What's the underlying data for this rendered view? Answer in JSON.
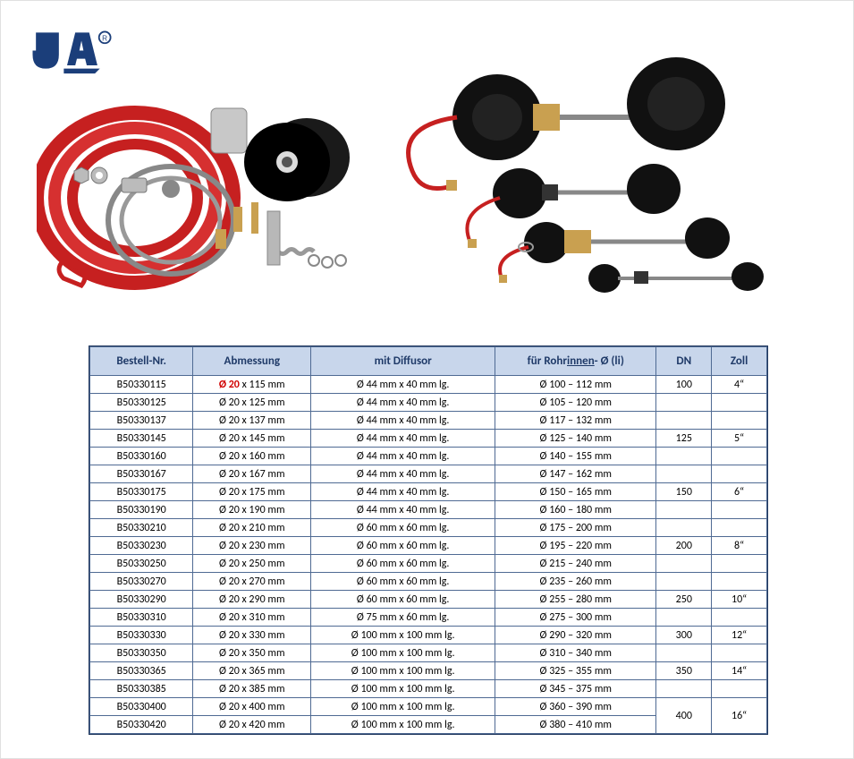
{
  "logo_color": "#1b3e7a",
  "headers": {
    "bnr": "Bestell-Nr.",
    "abm": "Abmessung",
    "dif": "mit Diffusor",
    "rohr_pre": "für Rohr",
    "rohr_underline": "innen",
    "rohr_post": "- Ø (li)",
    "dn": "DN",
    "zoll": "Zoll"
  },
  "rows": [
    {
      "bnr": "B50330115",
      "abm_red": "Ø 20",
      "abm_rest": " x 115 mm",
      "dif": "Ø  44 mm x   40 mm lg.",
      "rohr": "Ø 100 – 112 mm",
      "dn": "100",
      "zoll": "4“"
    },
    {
      "bnr": "B50330125",
      "abm": "Ø 20 x 125 mm",
      "dif": "Ø  44 mm x   40 mm lg.",
      "rohr": "Ø 105 – 120 mm",
      "dn": "",
      "zoll": ""
    },
    {
      "bnr": "B50330137",
      "abm": "Ø 20 x 137 mm",
      "dif": "Ø  44 mm x   40 mm lg.",
      "rohr": "Ø 117 – 132 mm",
      "dn": "",
      "zoll": ""
    },
    {
      "bnr": "B50330145",
      "abm": "Ø 20 x 145 mm",
      "dif": "Ø  44 mm x   40 mm lg.",
      "rohr": "Ø 125 – 140 mm",
      "dn": "125",
      "zoll": "5“"
    },
    {
      "bnr": "B50330160",
      "abm": "Ø 20 x 160 mm",
      "dif": "Ø  44 mm x   40 mm lg.",
      "rohr": "Ø 140 – 155 mm",
      "dn": "",
      "zoll": ""
    },
    {
      "bnr": "B50330167",
      "abm": "Ø 20 x 167 mm",
      "dif": "Ø  44 mm x   40 mm lg.",
      "rohr": "Ø 147 – 162 mm",
      "dn": "",
      "zoll": ""
    },
    {
      "bnr": "B50330175",
      "abm": "Ø 20 x 175 mm",
      "dif": "Ø  44 mm x   40 mm lg.",
      "rohr": "Ø 150 – 165 mm",
      "dn": "150",
      "zoll": "6“"
    },
    {
      "bnr": "B50330190",
      "abm": "Ø 20 x 190 mm",
      "dif": "Ø  44 mm x   40 mm lg.",
      "rohr": "Ø 160 – 180 mm",
      "dn": "",
      "zoll": ""
    },
    {
      "bnr": "B50330210",
      "abm": "Ø 20 x 210 mm",
      "dif": "Ø  60 mm x   60 mm lg.",
      "rohr": "Ø 175 – 200 mm",
      "dn": "",
      "zoll": ""
    },
    {
      "bnr": "B50330230",
      "abm": "Ø 20 x 230 mm",
      "dif": "Ø  60 mm x   60 mm lg.",
      "rohr": "Ø 195 – 220 mm",
      "dn": "200",
      "zoll": "8“"
    },
    {
      "bnr": "B50330250",
      "abm": "Ø 20 x 250 mm",
      "dif": "Ø  60 mm x   60 mm lg.",
      "rohr": "Ø 215 – 240 mm",
      "dn": "",
      "zoll": ""
    },
    {
      "bnr": "B50330270",
      "abm": "Ø 20 x 270 mm",
      "dif": "Ø  60 mm x   60 mm lg.",
      "rohr": "Ø 235 – 260 mm",
      "dn": "",
      "zoll": ""
    },
    {
      "bnr": "B50330290",
      "abm": "Ø 20 x 290 mm",
      "dif": "Ø  60 mm x   60 mm lg.",
      "rohr": "Ø 255 – 280 mm",
      "dn": "250",
      "zoll": "10“"
    },
    {
      "bnr": "B50330310",
      "abm": "Ø 20 x 310 mm",
      "dif": "Ø  75 mm x   60 mm lg.",
      "rohr": "Ø 275 – 300 mm",
      "dn": "",
      "zoll": ""
    },
    {
      "bnr": "B50330330",
      "abm": "Ø 20 x 330 mm",
      "dif": "Ø 100 mm x 100 mm lg.",
      "rohr": "Ø 290 – 320 mm",
      "dn": "300",
      "zoll": "12“"
    },
    {
      "bnr": "B50330350",
      "abm": "Ø 20 x 350 mm",
      "dif": "Ø 100 mm x 100 mm lg.",
      "rohr": "Ø 310 – 340 mm",
      "dn": "",
      "zoll": ""
    },
    {
      "bnr": "B50330365",
      "abm": "Ø 20 x 365 mm",
      "dif": "Ø 100 mm x 100 mm lg.",
      "rohr": "Ø 325 – 355 mm",
      "dn": "350",
      "zoll": "14“"
    },
    {
      "bnr": "B50330385",
      "abm": "Ø 20 x 385 mm",
      "dif": "Ø 100 mm x 100 mm lg.",
      "rohr": "Ø 345 – 375 mm",
      "dn": "",
      "zoll": ""
    },
    {
      "bnr": "B50330400",
      "abm": "Ø 20 x 400 mm",
      "dif": "Ø 100 mm x 100 mm lg.",
      "rohr": "Ø 360 – 390 mm",
      "dn": "400",
      "zoll": "16“",
      "dn_rowspan": 2,
      "zoll_rowspan": 2
    },
    {
      "bnr": "B50330420",
      "abm": "Ø 20 x 420 mm",
      "dif": "Ø 100 mm x 100 mm lg.",
      "rohr": "Ø 380 – 410 mm",
      "skip_dn": true
    }
  ]
}
